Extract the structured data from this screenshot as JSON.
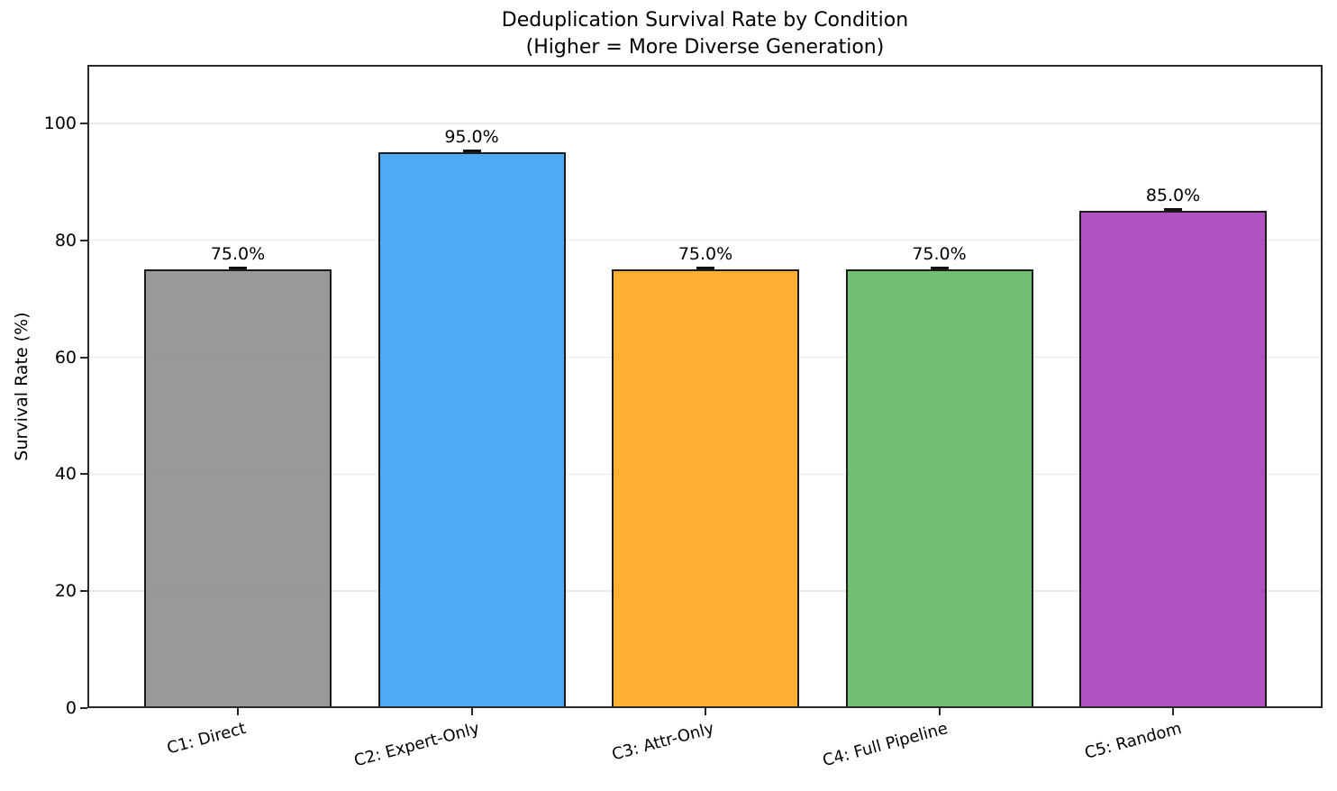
{
  "chart_data": {
    "type": "bar",
    "title": "Deduplication Survival Rate by Condition",
    "subtitle": "(Higher = More Diverse Generation)",
    "categories": [
      "C1: Direct",
      "C2: Expert-Only",
      "C3: Attr-Only",
      "C4: Full Pipeline",
      "C5: Random"
    ],
    "values": [
      75.0,
      95.0,
      75.0,
      75.0,
      85.0
    ],
    "bar_labels": [
      "75.0%",
      "95.0%",
      "75.0%",
      "75.0%",
      "85.0%"
    ],
    "bar_colors": [
      "rgba(128,128,128,0.8)",
      "rgba(33,150,243,0.8)",
      "rgba(255,156,0,0.8)",
      "rgba(76,175,80,0.8)",
      "rgba(156,39,176,0.8)"
    ],
    "bar_edge_color": "#1c1c1c",
    "error_values": [
      0,
      0,
      0,
      0,
      0
    ],
    "xlabel": "",
    "ylabel": "Survival Rate (%)",
    "yticks": [
      0,
      20,
      40,
      60,
      80,
      100
    ],
    "ylim": [
      0,
      110
    ],
    "grid": true,
    "grid_color": "#eaeaea",
    "spine_color": "#282828",
    "text_color": "#000000",
    "xtick_rotation_deg": 15,
    "legend": null
  }
}
